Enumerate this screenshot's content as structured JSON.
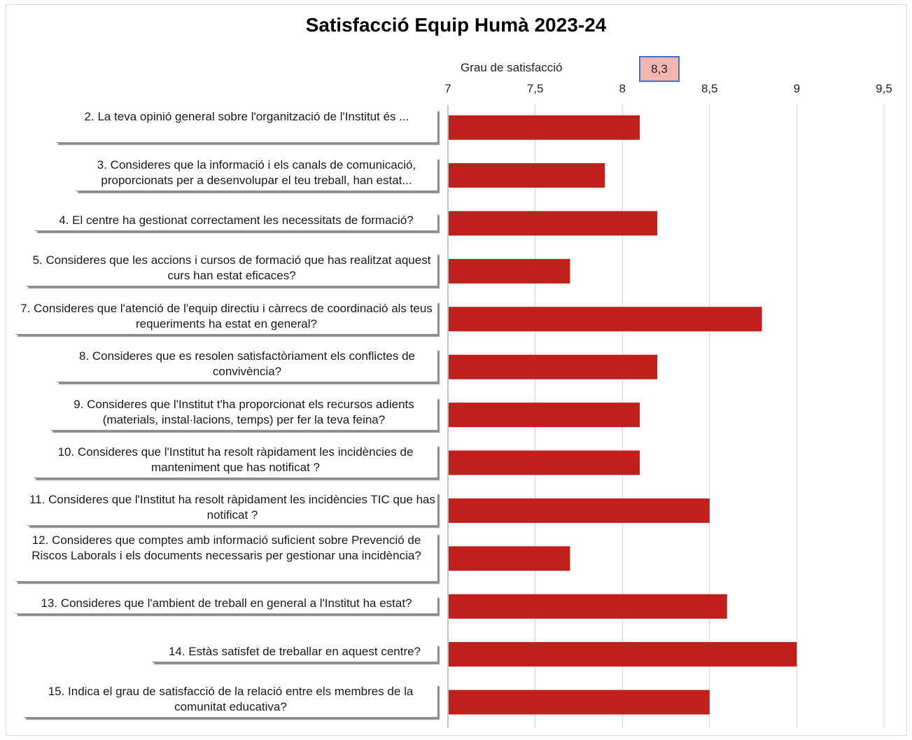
{
  "chart_data": {
    "type": "bar",
    "orientation": "horizontal",
    "title": "Satisfacció Equip Humà 2023-24",
    "xlabel": "Grau de satisfacció",
    "average_label": "8,3",
    "xlim": [
      7,
      9.5
    ],
    "xticks": [
      7,
      7.5,
      8,
      8.5,
      9,
      9.5
    ],
    "xtick_labels": [
      "7",
      "7,5",
      "8",
      "8,5",
      "9",
      "9,5"
    ],
    "grid": true,
    "bar_color": "#c0201b",
    "categories": [
      "2.                               La teva opinió general  sobre l'organització de l'Institut és ...",
      "3. Consideres que la informació i els canals de comunicació, proporcionats  per a desenvolupar el teu treball, han estat...",
      "4. El centre ha gestionat correctament les necessitats de formació?",
      "5. Consideres que les accions i cursos de formació que has realitzat aquest curs han estat eficaces?",
      "7. Consideres que l'atenció de l'equip directiu i càrrecs de coordinació als teus requeriments ha estat en general?",
      "8. Consideres que es resolen satisfactòriament els conflictes de convivència?",
      "9. Consideres que l'Institut t'ha proporcionat els recursos adients (materials, instal·lacions, temps) per fer la teva feina?",
      "10. Consideres que l'Institut ha resolt ràpidament les incidències de manteniment que has notificat ?",
      "11. Consideres que l'Institut ha resolt ràpidament les incidències TIC que has notificat ?",
      "12. Consideres que comptes amb informació suficient sobre Prevenció de Riscos Laborals i els documents necessaris per gestionar una incidència?",
      "13. Consideres que l'ambient de treball en general a l'Institut ha estat?",
      "14. Estàs satisfet de treballar en aquest centre?",
      "15. Indica el grau de satisfacció de la relació entre els membres de la comunitat educativa?"
    ],
    "values": [
      8.1,
      7.9,
      8.2,
      7.7,
      8.8,
      8.2,
      8.1,
      8.1,
      8.5,
      7.7,
      8.6,
      9.0,
      8.5
    ]
  }
}
